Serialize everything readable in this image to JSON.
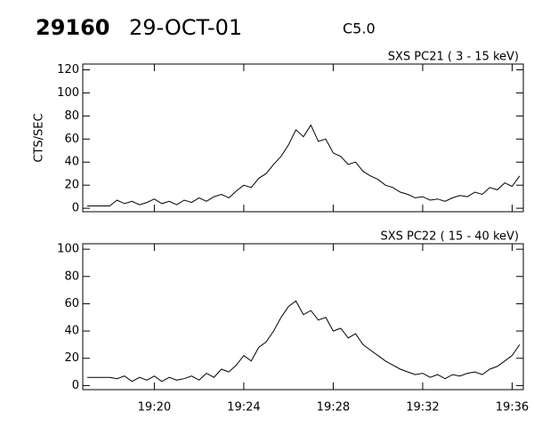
{
  "header": {
    "id": "29160",
    "date": "29-OCT-01",
    "class": "C5.0"
  },
  "chart_data": [
    {
      "type": "line",
      "title": "SXS PC21  (  3 - 15 keV)",
      "y_label": "CTS/SEC",
      "color": "#000000",
      "x": [
        "19:17:00",
        "19:17:20",
        "19:17:40",
        "19:18:00",
        "19:18:20",
        "19:18:40",
        "19:19:00",
        "19:19:20",
        "19:19:40",
        "19:20:00",
        "19:20:20",
        "19:20:40",
        "19:21:00",
        "19:21:20",
        "19:21:40",
        "19:22:00",
        "19:22:20",
        "19:22:40",
        "19:23:00",
        "19:23:20",
        "19:23:40",
        "19:24:00",
        "19:24:20",
        "19:24:40",
        "19:25:00",
        "19:25:20",
        "19:25:40",
        "19:26:00",
        "19:26:20",
        "19:26:40",
        "19:27:00",
        "19:27:20",
        "19:27:40",
        "19:28:00",
        "19:28:20",
        "19:28:40",
        "19:29:00",
        "19:29:20",
        "19:29:40",
        "19:30:00",
        "19:30:20",
        "19:30:40",
        "19:31:00",
        "19:31:20",
        "19:31:40",
        "19:32:00",
        "19:32:20",
        "19:32:40",
        "19:33:00",
        "19:33:20",
        "19:33:40",
        "19:34:00",
        "19:34:20",
        "19:34:40",
        "19:35:00",
        "19:35:20",
        "19:35:40",
        "19:36:00",
        "19:36:20"
      ],
      "values": [
        2,
        2,
        2,
        2,
        7,
        4,
        6,
        3,
        5,
        8,
        4,
        6,
        3,
        7,
        5,
        9,
        6,
        10,
        12,
        9,
        15,
        20,
        18,
        26,
        30,
        38,
        45,
        55,
        68,
        62,
        72,
        58,
        60,
        48,
        45,
        38,
        40,
        32,
        28,
        25,
        20,
        18,
        14,
        12,
        9,
        10,
        7,
        8,
        6,
        9,
        11,
        10,
        14,
        12,
        18,
        16,
        22,
        19,
        28
      ],
      "xlim": [
        "19:16:48",
        "19:36:30"
      ],
      "xticks": [
        "19:20",
        "19:24",
        "19:28",
        "19:32",
        "19:36"
      ],
      "ylim": [
        -3,
        125
      ],
      "yticks": [
        0,
        20,
        40,
        60,
        80,
        100,
        120
      ]
    },
    {
      "type": "line",
      "title": "SXS PC22  ( 15 - 40 keV)",
      "color": "#000000",
      "x": [
        "19:17:00",
        "19:17:20",
        "19:17:40",
        "19:18:00",
        "19:18:20",
        "19:18:40",
        "19:19:00",
        "19:19:20",
        "19:19:40",
        "19:20:00",
        "19:20:20",
        "19:20:40",
        "19:21:00",
        "19:21:20",
        "19:21:40",
        "19:22:00",
        "19:22:20",
        "19:22:40",
        "19:23:00",
        "19:23:20",
        "19:23:40",
        "19:24:00",
        "19:24:20",
        "19:24:40",
        "19:25:00",
        "19:25:20",
        "19:25:40",
        "19:26:00",
        "19:26:20",
        "19:26:40",
        "19:27:00",
        "19:27:20",
        "19:27:40",
        "19:28:00",
        "19:28:20",
        "19:28:40",
        "19:29:00",
        "19:29:20",
        "19:29:40",
        "19:30:00",
        "19:30:20",
        "19:30:40",
        "19:31:00",
        "19:31:20",
        "19:31:40",
        "19:32:00",
        "19:32:20",
        "19:32:40",
        "19:33:00",
        "19:33:20",
        "19:33:40",
        "19:34:00",
        "19:34:20",
        "19:34:40",
        "19:35:00",
        "19:35:20",
        "19:35:40",
        "19:36:00",
        "19:36:20"
      ],
      "values": [
        6,
        6,
        6,
        6,
        5,
        7,
        3,
        6,
        4,
        7,
        3,
        6,
        4,
        5,
        7,
        4,
        9,
        6,
        12,
        10,
        15,
        22,
        18,
        28,
        32,
        40,
        50,
        58,
        62,
        52,
        55,
        48,
        50,
        40,
        42,
        35,
        38,
        30,
        26,
        22,
        18,
        15,
        12,
        10,
        8,
        9,
        6,
        8,
        5,
        8,
        7,
        9,
        10,
        8,
        12,
        14,
        18,
        22,
        30
      ],
      "xlim": [
        "19:16:48",
        "19:36:30"
      ],
      "xticks": [
        "19:20",
        "19:24",
        "19:28",
        "19:32",
        "19:36"
      ],
      "ylim": [
        -3,
        104
      ],
      "yticks": [
        0,
        20,
        40,
        60,
        80,
        100
      ]
    }
  ]
}
